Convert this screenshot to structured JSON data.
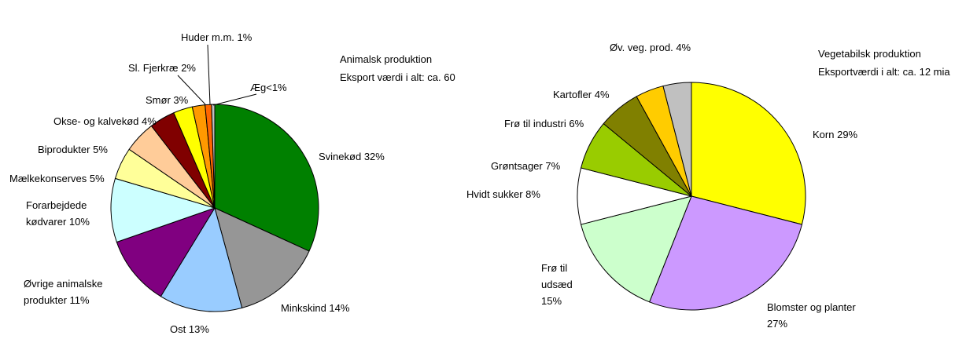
{
  "chart_data": [
    {
      "type": "pie",
      "title": "Animalsk produktion",
      "subtitle": "Eksport værdi i alt: ca. 60",
      "categories": [
        "Svinekød",
        "Minkskind",
        "Ost",
        "Øvrige animalske produkter",
        "Forarbejdede kødvarer",
        "Mælkekonserves",
        "Biprodukter",
        "Okse- og kalvekød",
        "Smør",
        "Sl. Fjerkræ",
        "Huder m.m.",
        "Æg"
      ],
      "values": [
        32,
        14,
        13,
        11,
        10,
        5,
        5,
        4,
        3,
        2,
        1,
        0.5
      ],
      "value_labels": [
        "32%",
        "14%",
        "13%",
        "11%",
        "10%",
        "5%",
        "5%",
        "4%",
        "3%",
        "2%",
        "1%",
        "<1%"
      ],
      "colors": [
        "#008000",
        "#969696",
        "#99ccff",
        "#800080",
        "#ccffff",
        "#ffff99",
        "#ffcc99",
        "#800000",
        "#ffff00",
        "#ff9900",
        "#ff6600",
        "#c0c0c0"
      ]
    },
    {
      "type": "pie",
      "title": "Vegetabilsk produktion",
      "subtitle": "Eksportværdi i alt: ca. 12 mia",
      "categories": [
        "Korn",
        "Blomster og planter",
        "Frø til udsæd",
        "Hvidt sukker",
        "Grøntsager",
        "Frø til industri",
        "Kartofler",
        "Øv. veg. prod."
      ],
      "values": [
        29,
        27,
        15,
        8,
        7,
        6,
        4,
        4
      ],
      "value_labels": [
        "29%",
        "27%",
        "15%",
        "8%",
        "7%",
        "6%",
        "4%",
        "4%"
      ],
      "colors": [
        "#ffff00",
        "#cc99ff",
        "#ccffcc",
        "#ffffff",
        "#99cc00",
        "#808000",
        "#ffcc00",
        "#c0c0c0"
      ]
    }
  ]
}
